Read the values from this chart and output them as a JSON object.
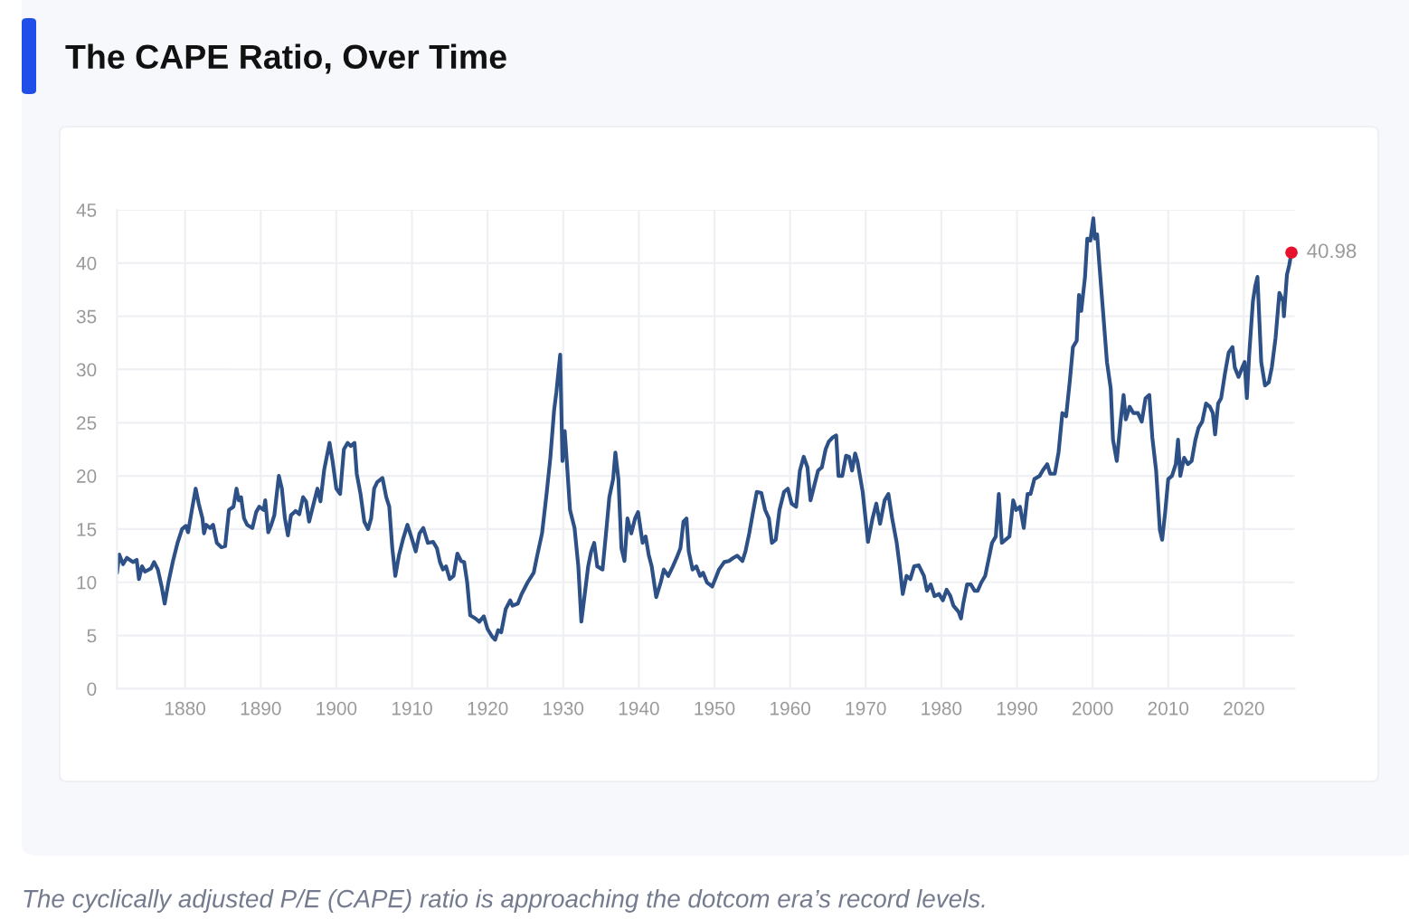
{
  "chart_data": {
    "type": "line",
    "title": "The CAPE Ratio, Over Time",
    "annotations": [
      "The cyclically adjusted P/E (CAPE) ratio is approaching the dotcom era’s record levels."
    ],
    "x": [
      1871.0,
      1871.3,
      1871.8,
      1872.3,
      1873.1,
      1873.6,
      1873.9,
      1874.3,
      1874.7,
      1875.5,
      1875.9,
      1876.4,
      1876.9,
      1877.3,
      1877.8,
      1878.4,
      1879.0,
      1879.6,
      1880.1,
      1880.4,
      1880.9,
      1881.4,
      1881.8,
      1882.3,
      1882.5,
      1882.8,
      1883.3,
      1883.7,
      1884.2,
      1884.8,
      1885.3,
      1885.8,
      1886.4,
      1886.8,
      1887.1,
      1887.4,
      1887.8,
      1888.2,
      1888.9,
      1889.4,
      1889.8,
      1890.4,
      1890.6,
      1891.0,
      1891.4,
      1891.8,
      1892.4,
      1892.8,
      1893.2,
      1893.6,
      1894.0,
      1894.6,
      1895.1,
      1895.6,
      1896.0,
      1896.4,
      1897.0,
      1897.5,
      1897.9,
      1898.4,
      1899.1,
      1899.5,
      1900.0,
      1900.5,
      1901.0,
      1901.5,
      1901.9,
      1902.4,
      1902.7,
      1903.2,
      1903.7,
      1904.2,
      1904.6,
      1905.0,
      1905.4,
      1906.1,
      1906.6,
      1907.0,
      1907.4,
      1907.8,
      1908.3,
      1908.8,
      1909.4,
      1909.9,
      1910.5,
      1911.0,
      1911.5,
      1912.1,
      1912.8,
      1913.3,
      1913.7,
      1914.1,
      1914.5,
      1915.0,
      1915.5,
      1916.0,
      1916.5,
      1916.9,
      1917.3,
      1917.7,
      1918.4,
      1918.9,
      1919.5,
      1920.0,
      1920.6,
      1921.0,
      1921.4,
      1921.8,
      1922.4,
      1923.0,
      1923.3,
      1924.0,
      1924.5,
      1925.3,
      1926.1,
      1926.5,
      1927.2,
      1927.8,
      1928.3,
      1928.8,
      1929.1,
      1929.6,
      1929.9,
      1930.2,
      1930.5,
      1930.9,
      1931.5,
      1932.0,
      1932.4,
      1932.8,
      1933.3,
      1933.7,
      1934.1,
      1934.5,
      1935.2,
      1935.7,
      1936.1,
      1936.6,
      1936.9,
      1937.3,
      1937.7,
      1938.1,
      1938.5,
      1939.0,
      1939.5,
      1939.9,
      1940.5,
      1940.9,
      1941.3,
      1941.7,
      1942.3,
      1942.9,
      1943.3,
      1943.9,
      1944.5,
      1945.0,
      1945.5,
      1945.9,
      1946.3,
      1946.6,
      1947.1,
      1947.6,
      1948.1,
      1948.5,
      1949.0,
      1949.7,
      1950.1,
      1950.6,
      1951.3,
      1951.9,
      1952.5,
      1953.0,
      1953.7,
      1954.1,
      1954.6,
      1955.1,
      1955.6,
      1956.2,
      1956.7,
      1957.2,
      1957.6,
      1958.1,
      1958.6,
      1959.2,
      1959.7,
      1960.2,
      1960.8,
      1961.3,
      1961.8,
      1962.3,
      1962.7,
      1963.2,
      1963.7,
      1964.2,
      1964.7,
      1965.1,
      1965.6,
      1966.1,
      1966.4,
      1966.9,
      1967.4,
      1967.8,
      1968.2,
      1968.6,
      1968.9,
      1969.6,
      1970.3,
      1970.9,
      1971.4,
      1971.9,
      1972.5,
      1973.0,
      1973.5,
      1974.1,
      1974.5,
      1974.9,
      1975.4,
      1975.9,
      1976.4,
      1977.0,
      1977.7,
      1978.1,
      1978.6,
      1979.1,
      1979.7,
      1980.2,
      1980.7,
      1981.2,
      1981.6,
      1982.3,
      1982.6,
      1982.9,
      1983.4,
      1983.9,
      1984.4,
      1984.8,
      1985.3,
      1985.8,
      1986.3,
      1986.7,
      1987.2,
      1987.6,
      1988.0,
      1988.5,
      1989.0,
      1989.5,
      1989.9,
      1990.4,
      1990.9,
      1991.4,
      1991.8,
      1992.3,
      1993.0,
      1993.4,
      1994.0,
      1994.4,
      1995.0,
      1995.5,
      1996.0,
      1996.5,
      1997.0,
      1997.4,
      1997.9,
      1998.2,
      1998.5,
      1999.0,
      1999.3,
      1999.7,
      2000.1,
      2000.3,
      2000.6,
      2000.9,
      2001.4,
      2001.9,
      2002.4,
      2002.7,
      2003.2,
      2003.7,
      2004.1,
      2004.4,
      2004.9,
      2005.4,
      2006.0,
      2006.5,
      2007.0,
      2007.5,
      2007.9,
      2008.4,
      2008.9,
      2009.2,
      2009.6,
      2010.0,
      2010.5,
      2011.0,
      2011.3,
      2011.6,
      2012.1,
      2012.6,
      2013.1,
      2013.6,
      2014.0,
      2014.5,
      2015.0,
      2015.5,
      2015.9,
      2016.2,
      2016.6,
      2017.0,
      2017.5,
      2018.0,
      2018.5,
      2018.8,
      2019.3,
      2019.8,
      2020.1,
      2020.4,
      2020.7,
      2021.2,
      2021.5,
      2021.8,
      2022.3,
      2022.8,
      2023.3,
      2023.7,
      2024.2,
      2024.7,
      2025.2,
      2025.3,
      2025.7,
      2026.0,
      2026.3
    ],
    "series": [
      {
        "color": "#2d5186",
        "values": [
          10.9,
          12.6,
          11.7,
          12.3,
          11.9,
          12.1,
          10.3,
          11.5,
          11.0,
          11.3,
          11.9,
          11.2,
          9.6,
          8.0,
          10.0,
          12.0,
          13.7,
          15.0,
          15.3,
          14.7,
          16.8,
          18.8,
          17.4,
          16.0,
          14.6,
          15.4,
          15.1,
          15.4,
          13.7,
          13.3,
          13.4,
          16.8,
          17.1,
          18.8,
          17.7,
          18.0,
          16.0,
          15.4,
          15.1,
          16.6,
          17.1,
          16.8,
          17.7,
          14.7,
          15.4,
          16.3,
          20.0,
          18.8,
          16.0,
          14.4,
          16.3,
          16.7,
          16.4,
          18.0,
          17.6,
          15.7,
          17.4,
          18.8,
          17.6,
          20.6,
          23.1,
          21.4,
          18.8,
          18.3,
          22.5,
          23.1,
          22.8,
          23.1,
          20.2,
          18.3,
          15.7,
          15.0,
          16.0,
          18.8,
          19.4,
          19.8,
          18.0,
          17.1,
          13.2,
          10.6,
          12.6,
          14.0,
          15.4,
          14.3,
          12.9,
          14.6,
          15.1,
          13.7,
          13.8,
          13.2,
          11.9,
          11.2,
          11.5,
          10.3,
          10.6,
          12.7,
          12.0,
          11.9,
          10.0,
          6.9,
          6.6,
          6.3,
          6.8,
          5.6,
          4.9,
          4.6,
          5.5,
          5.3,
          7.5,
          8.3,
          7.8,
          8.0,
          8.9,
          10.0,
          10.9,
          12.3,
          14.6,
          18.3,
          21.7,
          26.2,
          27.9,
          31.4,
          21.4,
          24.2,
          21.1,
          16.8,
          15.1,
          11.5,
          6.3,
          8.6,
          11.5,
          12.9,
          13.7,
          11.5,
          11.2,
          14.9,
          18.0,
          19.7,
          22.2,
          19.7,
          13.2,
          12.0,
          16.0,
          14.6,
          16.0,
          16.6,
          13.7,
          14.3,
          12.6,
          11.5,
          8.6,
          10.0,
          11.2,
          10.6,
          11.5,
          12.3,
          13.2,
          15.7,
          16.0,
          12.9,
          11.2,
          11.5,
          10.6,
          10.9,
          10.0,
          9.6,
          10.3,
          11.2,
          11.9,
          12.0,
          12.3,
          12.5,
          12.0,
          12.9,
          14.6,
          16.6,
          18.5,
          18.4,
          16.8,
          16.0,
          13.7,
          14.0,
          16.8,
          18.5,
          18.8,
          17.4,
          17.1,
          20.5,
          21.8,
          20.8,
          17.7,
          19.1,
          20.5,
          20.8,
          22.5,
          23.2,
          23.6,
          23.8,
          20.0,
          20.0,
          21.9,
          21.8,
          20.5,
          22.1,
          21.4,
          18.5,
          13.8,
          16.0,
          17.4,
          15.5,
          17.7,
          18.3,
          16.0,
          13.7,
          11.5,
          8.9,
          10.6,
          10.3,
          11.5,
          11.6,
          10.6,
          9.2,
          9.8,
          8.7,
          8.9,
          8.3,
          9.3,
          8.7,
          7.8,
          7.2,
          6.6,
          8.0,
          9.8,
          9.8,
          9.2,
          9.2,
          10.0,
          10.6,
          12.3,
          13.7,
          14.3,
          18.3,
          13.7,
          14.0,
          14.3,
          17.7,
          16.8,
          17.1,
          15.1,
          18.3,
          18.3,
          19.7,
          20.0,
          20.5,
          21.1,
          20.2,
          20.2,
          22.2,
          25.9,
          25.6,
          29.0,
          32.1,
          32.7,
          37.0,
          35.5,
          38.7,
          42.3,
          42.1,
          44.2,
          42.3,
          42.7,
          39.8,
          35.3,
          30.7,
          28.2,
          23.4,
          21.4,
          25.1,
          27.6,
          25.3,
          26.5,
          25.9,
          25.9,
          25.1,
          27.3,
          27.6,
          23.6,
          20.5,
          14.9,
          14.0,
          16.6,
          19.7,
          20.0,
          21.1,
          23.4,
          20.0,
          21.7,
          21.1,
          21.4,
          23.4,
          24.5,
          25.1,
          26.8,
          26.5,
          25.9,
          23.9,
          26.8,
          27.3,
          29.6,
          31.6,
          32.1,
          30.2,
          29.3,
          30.2,
          30.7,
          27.3,
          31.3,
          36.4,
          37.8,
          38.7,
          30.7,
          28.5,
          28.8,
          30.2,
          33.0,
          37.2,
          36.4,
          35.0,
          38.9,
          39.8,
          41.0
        ]
      },
      {
        "type": "scatter",
        "color": "#e8112d",
        "x": [
          2026.3
        ],
        "values": [
          40.98
        ],
        "value_labels": [
          "40.98"
        ]
      }
    ],
    "xlim": [
      1871,
      2026.7
    ],
    "xticks": [
      1880,
      1890,
      1900,
      1910,
      1920,
      1930,
      1940,
      1950,
      1960,
      1970,
      1980,
      1990,
      2000,
      2010,
      2020
    ],
    "ylim": [
      0,
      45
    ],
    "yticks": [
      0,
      5,
      10,
      15,
      20,
      25,
      30,
      35,
      40,
      45
    ],
    "grid": true
  }
}
